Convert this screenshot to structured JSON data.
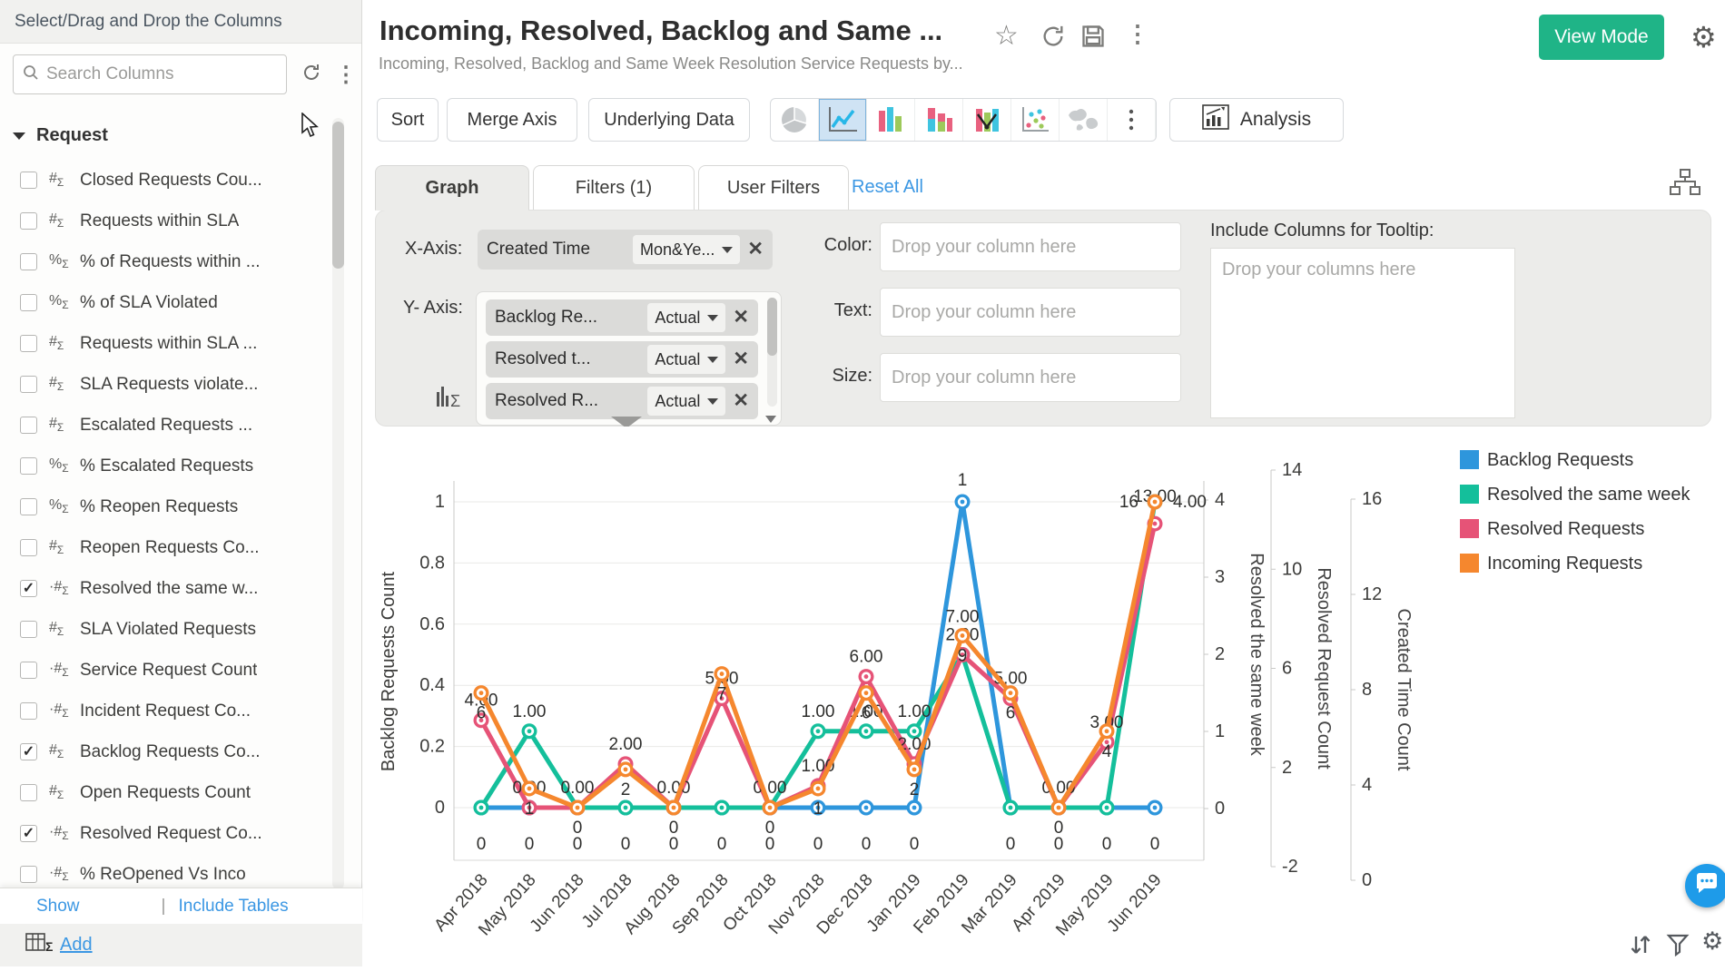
{
  "sidebar": {
    "header": "Select/Drag and Drop the Columns",
    "search_placeholder": "Search Columns",
    "group": "Request",
    "items": [
      {
        "label": "Closed Requests Cou...",
        "type": "#",
        "checked": false
      },
      {
        "label": "Requests within SLA",
        "type": "#",
        "checked": false
      },
      {
        "label": "% of Requests within ...",
        "type": "%",
        "checked": false
      },
      {
        "label": "% of SLA Violated",
        "type": "%",
        "checked": false
      },
      {
        "label": "Requests within SLA ...",
        "type": "#",
        "checked": false
      },
      {
        "label": "SLA Requests violate...",
        "type": "#",
        "checked": false
      },
      {
        "label": "Escalated Requests ...",
        "type": "#",
        "checked": false
      },
      {
        "label": "% Escalated Requests",
        "type": "%",
        "checked": false
      },
      {
        "label": "% Reopen Requests",
        "type": "%",
        "checked": false
      },
      {
        "label": "Reopen Requests Co...",
        "type": "#",
        "checked": false
      },
      {
        "label": "Resolved the same w...",
        "type": "·#",
        "checked": true
      },
      {
        "label": "SLA Violated Requests",
        "type": "#",
        "checked": false
      },
      {
        "label": "Service Request Count",
        "type": "·#",
        "checked": false
      },
      {
        "label": "Incident Request Co...",
        "type": "·#",
        "checked": false
      },
      {
        "label": "Backlog Requests Co...",
        "type": "#",
        "checked": true
      },
      {
        "label": "Open Requests Count",
        "type": "#",
        "checked": false
      },
      {
        "label": "Resolved Request Co...",
        "type": "·#",
        "checked": true
      },
      {
        "label": "% ReOpened Vs Inco",
        "type": "·#",
        "checked": false
      }
    ],
    "footer": {
      "show": "Show",
      "divider": "|",
      "include_tables": "Include Tables",
      "add": "Add"
    }
  },
  "header": {
    "title": "Incoming, Resolved, Backlog and Same ...",
    "subtitle": "Incoming, Resolved, Backlog and Same Week Resolution Service Requests by...",
    "view_mode": "View Mode",
    "icons": [
      "star-icon",
      "refresh-icon",
      "save-icon",
      "more-icon",
      "gear-icon"
    ]
  },
  "toolbar": {
    "sort": "Sort",
    "merge_axis": "Merge Axis",
    "underlying_data": "Underlying Data",
    "analysis": "Analysis",
    "chart_types": [
      {
        "name": "pie-chart-icon",
        "selected": false
      },
      {
        "name": "line-chart-icon",
        "selected": true
      },
      {
        "name": "bar-chart-icon",
        "selected": false
      },
      {
        "name": "stacked-bar-icon",
        "selected": false
      },
      {
        "name": "combo-chart-icon",
        "selected": false
      },
      {
        "name": "scatter-chart-icon",
        "selected": false
      },
      {
        "name": "map-chart-icon",
        "selected": false
      },
      {
        "name": "more-charts-icon",
        "selected": false
      }
    ]
  },
  "tabs": {
    "graph": "Graph",
    "filters": "Filters  (1)",
    "user_filters": "User Filters",
    "reset_all": "Reset All"
  },
  "config": {
    "x_axis_label": "X-Axis:",
    "y_axis_label": "Y- Axis:",
    "x_axis": {
      "field": "Created Time",
      "agg": "Mon&Ye..."
    },
    "y_axis": [
      {
        "field": "Backlog Re...",
        "agg": "Actual"
      },
      {
        "field": "Resolved t...",
        "agg": "Actual"
      },
      {
        "field": "Resolved R...",
        "agg": "Actual"
      }
    ],
    "color_label": "Color:",
    "text_label": "Text:",
    "size_label": "Size:",
    "drop_placeholder": "Drop your column here",
    "tooltip_label": "Include Columns for Tooltip:",
    "tooltip_placeholder": "Drop your columns here"
  },
  "chart_data": {
    "type": "line",
    "categories": [
      "Apr 2018",
      "May 2018",
      "Jun 2018",
      "Jul 2018",
      "Aug 2018",
      "Sep 2018",
      "Oct 2018",
      "Nov 2018",
      "Dec 2018",
      "Jan 2019",
      "Feb 2019",
      "Mar 2019",
      "Apr 2019",
      "May 2019",
      "Jun 2019"
    ],
    "series": [
      {
        "name": "Backlog Requests",
        "color": "#2E96DC",
        "axis": "Backlog Requests Count",
        "range": [
          0,
          1
        ],
        "values": [
          0,
          0,
          0,
          0,
          0,
          0,
          0,
          0,
          0,
          0,
          1,
          0,
          0,
          0,
          0
        ],
        "labels": [
          "0",
          "0",
          "0",
          "0",
          "0",
          "0",
          "0",
          "0",
          "0",
          "0",
          "1",
          "0",
          "0",
          "0",
          "0"
        ]
      },
      {
        "name": "Resolved the same week",
        "color": "#14BF9B",
        "axis": "Resolved the same week",
        "range": [
          0,
          4
        ],
        "values": [
          0,
          1,
          0,
          0,
          0,
          0,
          0,
          1,
          1,
          1,
          2,
          0,
          0,
          0,
          4
        ],
        "labels": [
          "",
          "1.00",
          "",
          "",
          "",
          "",
          "",
          "1.00",
          "1.00",
          "1.00",
          "2.00",
          "",
          "",
          "",
          "4.00"
        ]
      },
      {
        "name": "Resolved Requests",
        "color": "#E65377",
        "axis": "Resolved Request Count",
        "range": [
          -2,
          14
        ],
        "values": [
          4,
          0,
          0,
          2,
          0,
          5,
          0,
          1,
          6,
          2,
          7,
          5,
          0,
          3,
          13
        ],
        "labels": [
          "4.00",
          "0.00",
          "0.00",
          "2.00",
          "0.00",
          "5.00",
          "0.00",
          "1.00",
          "6.00",
          "2.00",
          "7.00",
          "5.00",
          "0.00",
          "3.00",
          "13.00"
        ]
      },
      {
        "name": "Incoming Requests",
        "color": "#F5872E",
        "axis": "Created Time Count",
        "range": [
          0,
          16
        ],
        "values": [
          6,
          1,
          0,
          2,
          0,
          7,
          0,
          1,
          6,
          2,
          9,
          6,
          0,
          4,
          16
        ],
        "labels": [
          "6",
          "1",
          "0",
          "2",
          "0",
          "7",
          "0",
          "1",
          "6",
          "2",
          "9",
          "6",
          "0",
          "4",
          "16"
        ]
      }
    ],
    "axes": {
      "left": {
        "label": "Backlog Requests Count",
        "ticks": [
          1,
          0.8,
          0.6,
          0.4,
          0.2,
          0
        ]
      },
      "right": [
        {
          "label": "Resolved the same week",
          "ticks": [
            4,
            3,
            2,
            1,
            0
          ],
          "range": [
            0,
            4
          ]
        },
        {
          "label": "Resolved Request Count",
          "ticks": [
            14,
            10,
            6,
            2,
            -2
          ],
          "range": [
            -2,
            14
          ]
        },
        {
          "label": "Created Time Count",
          "ticks": [
            16,
            12,
            8,
            4,
            0
          ],
          "range": [
            0,
            16
          ]
        }
      ]
    },
    "legend": {
      "position": "right",
      "entries": [
        "Backlog Requests",
        "Resolved the same week",
        "Resolved Requests",
        "Incoming Requests"
      ]
    },
    "grid": true,
    "xlabel": "",
    "title": ""
  },
  "footer_icons": [
    "sort-rows-icon",
    "filter-icon",
    "settings-icon",
    "chat-icon"
  ]
}
